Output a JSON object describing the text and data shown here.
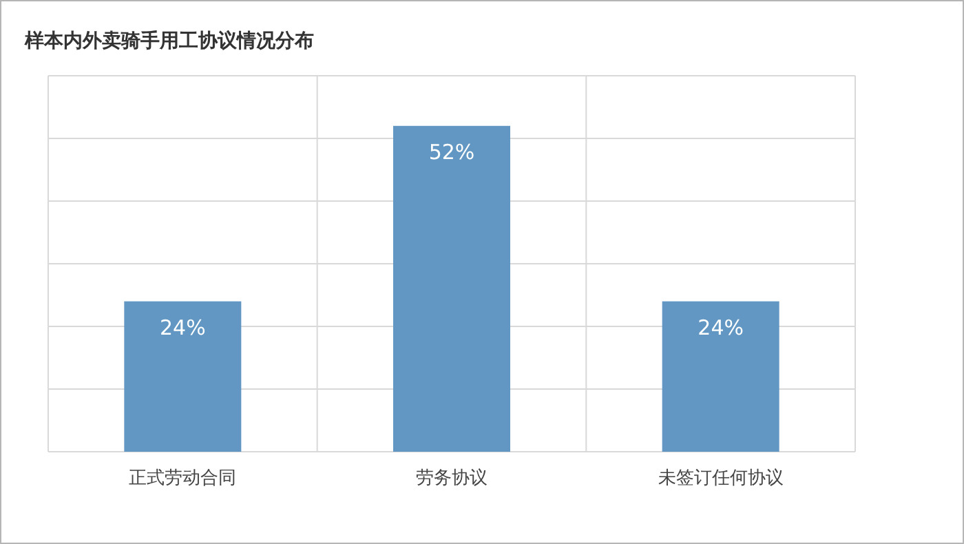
{
  "chart_data": {
    "type": "bar",
    "title": "样本内外卖骑手用工协议情况分布",
    "categories": [
      "正式劳动合同",
      "劳务协议",
      "未签订任何协议"
    ],
    "values": [
      24,
      52,
      24
    ],
    "value_labels": [
      "24%",
      "52%",
      "24%"
    ],
    "color": "#6197c2",
    "ylim": [
      0,
      60
    ],
    "yticks": [
      {
        "value": 0,
        "label": null
      },
      {
        "value": 10,
        "label": null
      },
      {
        "value": 20,
        "label": null
      },
      {
        "value": 30,
        "label": null
      },
      {
        "value": 40,
        "label": null
      },
      {
        "value": 50,
        "label": null
      },
      {
        "value": 60,
        "label": null
      }
    ],
    "tick_labels": "x",
    "grid": true
  }
}
